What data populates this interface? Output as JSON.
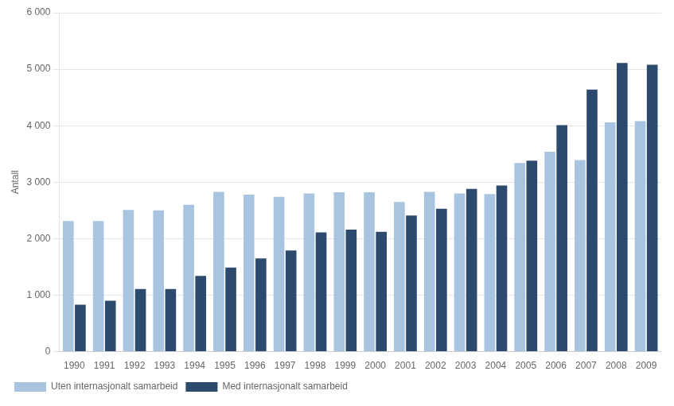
{
  "chart_data": {
    "type": "bar",
    "categories": [
      1990,
      1991,
      1992,
      1993,
      1994,
      1995,
      1996,
      1997,
      1998,
      1999,
      2000,
      2001,
      2002,
      2003,
      2004,
      2005,
      2006,
      2007,
      2008,
      2009
    ],
    "series": [
      {
        "name": "Uten internasjonalt samarbeid",
        "color": "#a8c4e0",
        "values": [
          2310,
          2310,
          2510,
          2500,
          2600,
          2830,
          2780,
          2740,
          2800,
          2820,
          2820,
          2650,
          2830,
          2800,
          2790,
          3340,
          3540,
          3390,
          4060,
          4080
        ]
      },
      {
        "name": "Med internasjonalt samarbeid",
        "color": "#2b4a6e",
        "values": [
          830,
          900,
          1110,
          1110,
          1340,
          1490,
          1650,
          1790,
          2110,
          2160,
          2120,
          2410,
          2530,
          2880,
          2940,
          3380,
          4010,
          4640,
          5110,
          5080
        ]
      }
    ],
    "ylabel": "Antall",
    "ylim": [
      0,
      6000
    ],
    "yticks": [
      0,
      {
        "value": 1000,
        "label": "1 000"
      },
      {
        "value": 2000,
        "label": "2 000"
      },
      {
        "value": 3000,
        "label": "3 000"
      },
      {
        "value": 4000,
        "label": "4 000"
      },
      {
        "value": 5000,
        "label": "5 000"
      },
      {
        "value": 6000,
        "label": "6 000"
      }
    ],
    "grid": true,
    "legend": "bottom"
  }
}
